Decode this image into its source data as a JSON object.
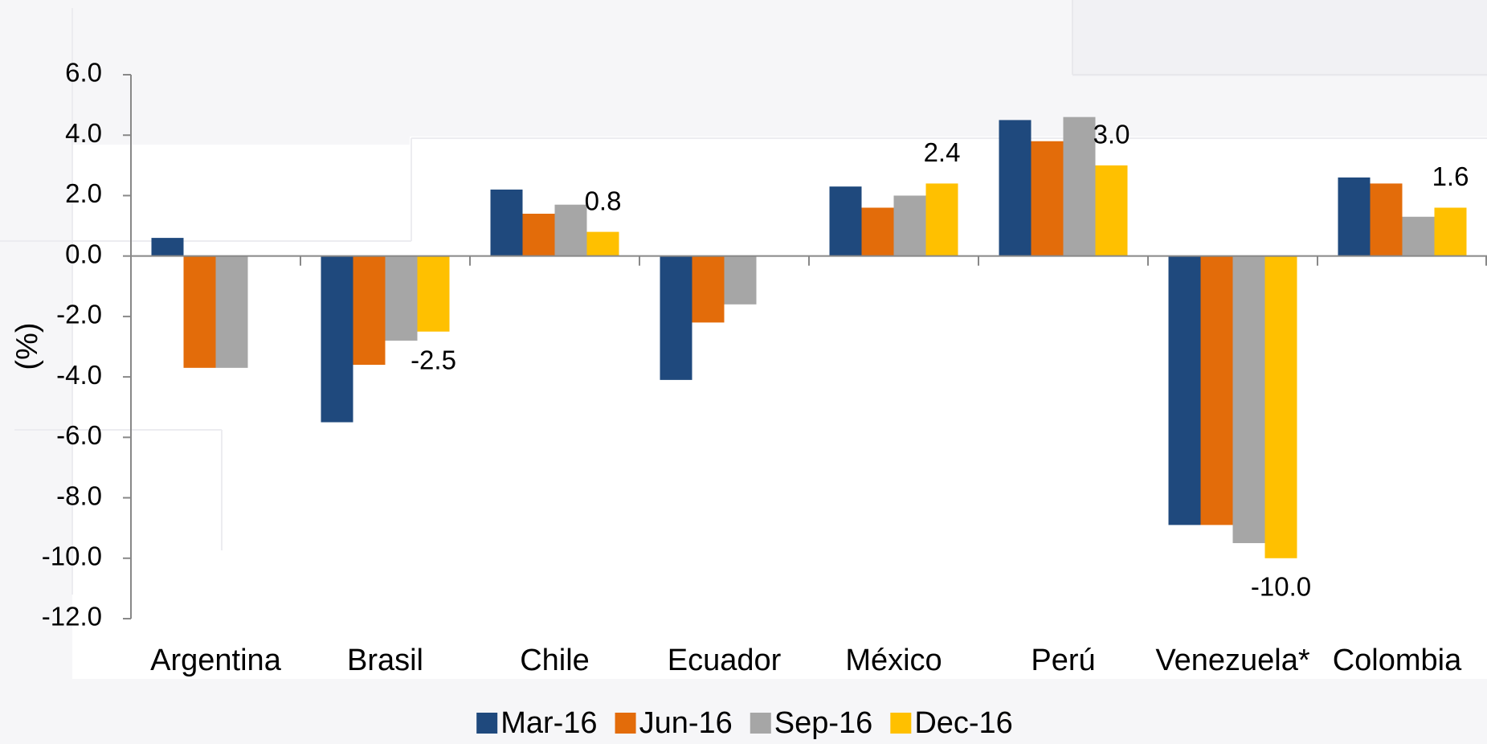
{
  "chart_data": {
    "type": "bar",
    "y_label": "(%)",
    "categories": [
      "Argentina",
      "Brasil",
      "Chile",
      "Ecuador",
      "México",
      "Perú",
      "Venezuela*",
      "Colombia"
    ],
    "series": [
      {
        "name": "Mar-16",
        "color": "#1f497d",
        "values": [
          0.6,
          -5.5,
          2.2,
          -4.1,
          2.3,
          4.5,
          -8.9,
          2.6
        ]
      },
      {
        "name": "Jun-16",
        "color": "#e36c0a",
        "values": [
          -3.7,
          -3.6,
          1.4,
          -2.2,
          1.6,
          3.8,
          -8.9,
          2.4
        ]
      },
      {
        "name": "Sep-16",
        "color": "#a6a6a6",
        "values": [
          -3.7,
          -2.8,
          1.7,
          -1.6,
          2.0,
          4.6,
          -9.5,
          1.3
        ]
      },
      {
        "name": "Dec-16",
        "color": "#ffc000",
        "values": [
          null,
          -2.5,
          0.8,
          null,
          2.4,
          3.0,
          -10.0,
          1.6
        ],
        "value_labels": [
          null,
          "-2.5",
          "0.8",
          null,
          "2.4",
          "3.0",
          "-10.0",
          "1.6"
        ]
      }
    ],
    "ylim": [
      -12,
      6
    ],
    "yticks": [
      {
        "value": -12,
        "label": "-12.0"
      },
      {
        "value": -10,
        "label": "-10.0"
      },
      {
        "value": -8,
        "label": "-8.0"
      },
      {
        "value": -6,
        "label": "-6.0"
      },
      {
        "value": -4,
        "label": "-4.0"
      },
      {
        "value": -2,
        "label": "-2.0"
      },
      {
        "value": 0,
        "label": "0.0"
      },
      {
        "value": 2,
        "label": "2.0"
      },
      {
        "value": 4,
        "label": "4.0"
      },
      {
        "value": 6,
        "label": "6.0"
      }
    ],
    "legend": "bottom"
  }
}
